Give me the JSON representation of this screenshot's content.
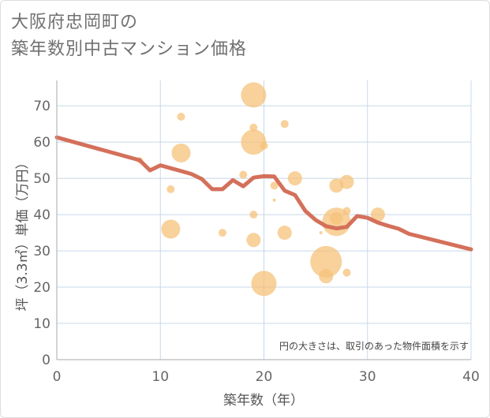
{
  "title_line1": "大阪府忠岡町の",
  "title_line2": "築年数別中古マンション価格",
  "chart_data": {
    "type": "scatter",
    "xlabel": "築年数（年）",
    "ylabel": "坪（3.3㎡）単価（万円）",
    "xlim": [
      0,
      40
    ],
    "ylim": [
      0,
      77
    ],
    "xticks": [
      "0",
      "10",
      "20",
      "30",
      "40"
    ],
    "yticks": [
      "0",
      "10",
      "20",
      "30",
      "40",
      "50",
      "60",
      "70"
    ],
    "grid": true,
    "annotation": "円の大きさは、取引のあった物件面積を示す",
    "colors": {
      "bubble": "#f5c27a",
      "trend": "#d4705a",
      "grid": "#c8d8e8"
    },
    "bubbles": [
      {
        "x": 8,
        "y": 55,
        "r": 4
      },
      {
        "x": 11,
        "y": 47,
        "r": 5
      },
      {
        "x": 11,
        "y": 36,
        "r": 12
      },
      {
        "x": 12,
        "y": 67,
        "r": 5
      },
      {
        "x": 12,
        "y": 57,
        "r": 12
      },
      {
        "x": 16,
        "y": 35,
        "r": 5
      },
      {
        "x": 18,
        "y": 51,
        "r": 5
      },
      {
        "x": 19,
        "y": 73,
        "r": 16
      },
      {
        "x": 19,
        "y": 64,
        "r": 5
      },
      {
        "x": 19,
        "y": 60,
        "r": 16
      },
      {
        "x": 19,
        "y": 40,
        "r": 5
      },
      {
        "x": 19,
        "y": 33,
        "r": 9
      },
      {
        "x": 20,
        "y": 59,
        "r": 5
      },
      {
        "x": 20,
        "y": 21,
        "r": 16
      },
      {
        "x": 21,
        "y": 48,
        "r": 5
      },
      {
        "x": 21,
        "y": 44,
        "r": 2
      },
      {
        "x": 22,
        "y": 65,
        "r": 5
      },
      {
        "x": 22,
        "y": 35,
        "r": 9
      },
      {
        "x": 23,
        "y": 50,
        "r": 9
      },
      {
        "x": 25.5,
        "y": 35,
        "r": 2
      },
      {
        "x": 26,
        "y": 27,
        "r": 20
      },
      {
        "x": 26,
        "y": 23,
        "r": 9
      },
      {
        "x": 27,
        "y": 48,
        "r": 9
      },
      {
        "x": 27,
        "y": 38,
        "r": 18
      },
      {
        "x": 27,
        "y": 39,
        "r": 8
      },
      {
        "x": 28,
        "y": 49,
        "r": 9
      },
      {
        "x": 28,
        "y": 41,
        "r": 5
      },
      {
        "x": 28,
        "y": 24,
        "r": 5
      },
      {
        "x": 31,
        "y": 40,
        "r": 9
      }
    ],
    "trend": {
      "x": [
        0,
        8,
        9,
        10,
        11,
        12,
        13,
        14,
        15,
        16,
        17,
        18,
        19,
        20,
        21,
        22,
        23,
        24,
        25,
        26,
        27,
        28,
        29,
        30,
        31,
        32,
        33,
        34,
        40
      ],
      "y": [
        61.3,
        55,
        52.2,
        53.6,
        52.8,
        52,
        51.2,
        49.8,
        47,
        47,
        49.5,
        47.8,
        50.2,
        50.6,
        50.5,
        46.6,
        45.4,
        41,
        38.5,
        36.8,
        36.2,
        36.6,
        39.6,
        39.1,
        37.8,
        36.9,
        36.1,
        34.7,
        30.4
      ]
    }
  }
}
